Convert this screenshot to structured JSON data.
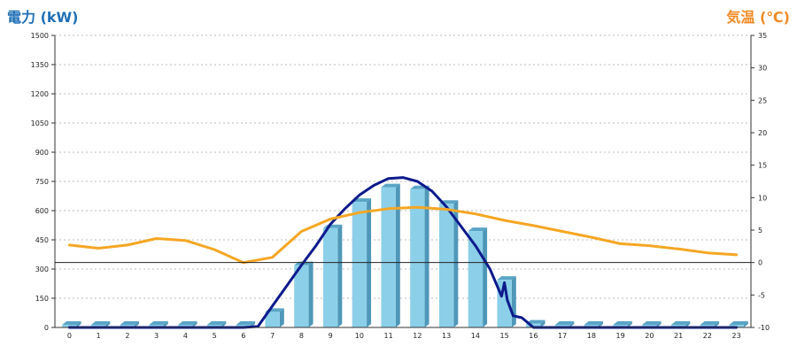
{
  "chart_data": {
    "type": "bar",
    "left_axis_title": "電力 (kW)",
    "right_axis_title": "気温 (℃)",
    "categories": [
      "0",
      "1",
      "2",
      "3",
      "4",
      "5",
      "6",
      "7",
      "8",
      "9",
      "10",
      "11",
      "12",
      "13",
      "14",
      "15",
      "16",
      "17",
      "18",
      "19",
      "20",
      "21",
      "22",
      "23"
    ],
    "y_left": {
      "min": 0,
      "max": 1500,
      "ticks": [
        0,
        150,
        300,
        450,
        600,
        750,
        900,
        1050,
        1200,
        1350,
        1500
      ]
    },
    "y_right": {
      "min": -10,
      "max": 35,
      "ticks": [
        -10,
        -5,
        0,
        5,
        10,
        15,
        20,
        25,
        30,
        35
      ]
    },
    "zero_line_right": 0,
    "grid": true,
    "series": [
      {
        "kind": "bar",
        "axis": "left",
        "color": "#8ccfe8",
        "values": [
          0,
          0,
          0,
          0,
          0,
          0,
          0,
          80,
          320,
          510,
          645,
          720,
          710,
          635,
          495,
          245,
          20,
          0,
          0,
          0,
          0,
          0,
          0,
          0
        ]
      },
      {
        "kind": "line",
        "axis": "left",
        "color": "#0d1a8c",
        "x": [
          0,
          1,
          2,
          3,
          4,
          5,
          6,
          6.5,
          7,
          7.5,
          8,
          8.5,
          9,
          9.5,
          10,
          10.5,
          11,
          11.5,
          12,
          12.5,
          13,
          13.5,
          14,
          14.5,
          14.9,
          15,
          15.1,
          15.3,
          15.6,
          16,
          17,
          18,
          19,
          20,
          21,
          22,
          23
        ],
        "values": [
          0,
          0,
          0,
          0,
          0,
          0,
          0,
          5,
          110,
          215,
          320,
          420,
          530,
          610,
          680,
          730,
          765,
          770,
          750,
          700,
          620,
          520,
          420,
          300,
          160,
          230,
          140,
          60,
          50,
          0,
          0,
          0,
          0,
          0,
          0,
          0,
          0
        ]
      },
      {
        "kind": "line",
        "axis": "right",
        "color": "#f5a623",
        "x": [
          0,
          1,
          2,
          3,
          4,
          5,
          6,
          7,
          8,
          9,
          10,
          11,
          12,
          13,
          14,
          15,
          16,
          17,
          18,
          19,
          20,
          21,
          22,
          23
        ],
        "values": [
          2.7,
          2.2,
          2.7,
          3.7,
          3.4,
          2.0,
          0.0,
          0.8,
          4.8,
          6.7,
          7.7,
          8.3,
          8.5,
          8.2,
          7.5,
          6.5,
          5.7,
          4.8,
          3.9,
          2.9,
          2.6,
          2.1,
          1.5,
          1.2
        ]
      }
    ]
  }
}
